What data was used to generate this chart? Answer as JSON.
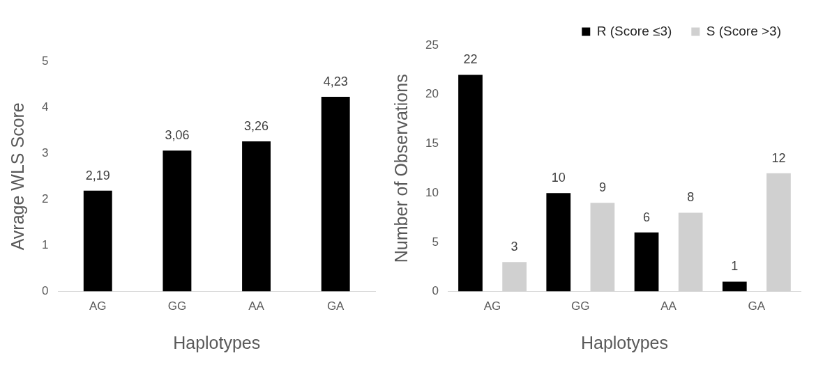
{
  "chart_data": [
    {
      "type": "bar",
      "xlabel": "Haplotypes",
      "ylabel": "Avrage WLS Score",
      "categories": [
        "AG",
        "GG",
        "AA",
        "GA"
      ],
      "series": [
        {
          "color": "#000000",
          "values": [
            2.19,
            3.06,
            3.26,
            4.23
          ],
          "value_labels": [
            "2,19",
            "3,06",
            "3,26",
            "4,23"
          ]
        }
      ],
      "ylim": [
        0,
        5
      ],
      "yticks": [
        0,
        1,
        2,
        3,
        4,
        5
      ],
      "grid": false,
      "legend": false
    },
    {
      "type": "bar",
      "xlabel": "Haplotypes",
      "ylabel": "Number of Observations",
      "categories": [
        "AG",
        "GG",
        "AA",
        "GA"
      ],
      "series": [
        {
          "name": "R (Score ≤3)",
          "color": "#000000",
          "values": [
            22,
            10,
            6,
            1
          ]
        },
        {
          "name": "S (Score >3)",
          "color": "#d0d0d0",
          "values": [
            3,
            9,
            8,
            12
          ]
        }
      ],
      "ylim": [
        0,
        25
      ],
      "yticks": [
        0,
        5,
        10,
        15,
        20,
        25
      ],
      "grid": false,
      "legend": "top right",
      "data_labels": true
    }
  ]
}
